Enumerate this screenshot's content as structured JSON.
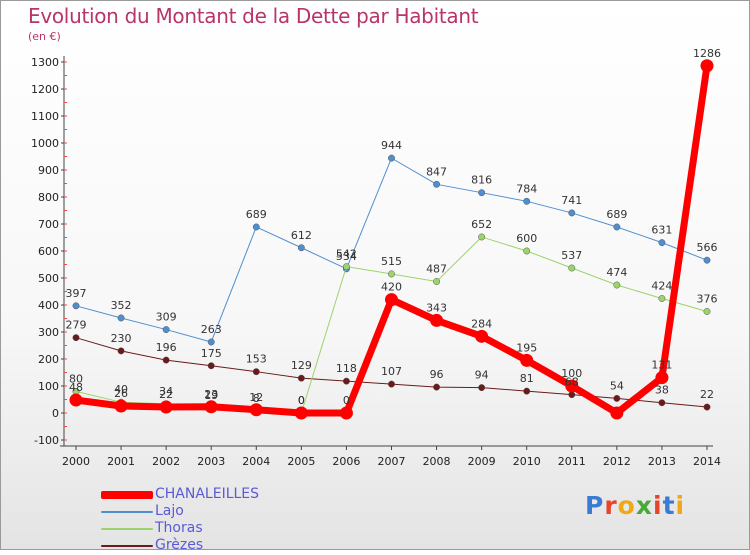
{
  "title": "Evolution du Montant de la Dette par Habitant",
  "subtitle": "(en €)",
  "logo": "Proxiti",
  "chart_data": {
    "type": "line",
    "x": [
      "2000",
      "2001",
      "2002",
      "2003",
      "2004",
      "2005",
      "2006",
      "2007",
      "2008",
      "2009",
      "2010",
      "2011",
      "2012",
      "2013",
      "2014"
    ],
    "ylim": [
      -100,
      1300
    ],
    "yticks": [
      "-100",
      "0",
      "100",
      "200",
      "300",
      "400",
      "500",
      "600",
      "700",
      "800",
      "900",
      "1000",
      "1100",
      "1200",
      "1300"
    ],
    "grid": false,
    "legend_position": "bottom-left",
    "series": [
      {
        "name": "Grèzes",
        "color": "#6b1a1a",
        "width": 1,
        "values": [
          279,
          230,
          196,
          175,
          153,
          129,
          118,
          107,
          96,
          94,
          81,
          68,
          54,
          38,
          22
        ],
        "labels": [
          "279",
          "230",
          "196",
          "175",
          "153",
          "129",
          "118",
          "107",
          "96",
          "94",
          "81",
          "68",
          "54",
          "38",
          "22"
        ]
      },
      {
        "name": "Lajo",
        "color": "#4f8fcf",
        "width": 1,
        "values": [
          397,
          352,
          309,
          263,
          689,
          612,
          534,
          944,
          847,
          816,
          784,
          741,
          689,
          631,
          566
        ],
        "labels": [
          "397",
          "352",
          "309",
          "263",
          "689",
          "612",
          "534",
          "944",
          "847",
          "816",
          "784",
          "741",
          "689",
          "631",
          "566"
        ]
      },
      {
        "name": "Thoras",
        "color": "#9bd46b",
        "width": 1,
        "values": [
          80,
          40,
          34,
          19,
          8,
          0,
          542,
          515,
          487,
          652,
          600,
          537,
          474,
          424,
          376
        ],
        "labels": [
          "80",
          "40",
          "34",
          "19",
          "8",
          "0",
          "542",
          "515",
          "487",
          "652",
          "600",
          "537",
          "474",
          "424",
          "376"
        ]
      },
      {
        "name": "CHANALEILLES",
        "color": "#ff0000",
        "width": 7,
        "values": [
          48,
          26,
          22,
          23,
          12,
          0,
          0,
          420,
          343,
          284,
          195,
          100,
          0,
          131,
          1286
        ],
        "labels": [
          "48",
          "26",
          "22",
          "23",
          "12",
          "0",
          "0",
          "420",
          "343",
          "284",
          "195",
          "100",
          "",
          "131",
          "1286"
        ]
      }
    ]
  }
}
